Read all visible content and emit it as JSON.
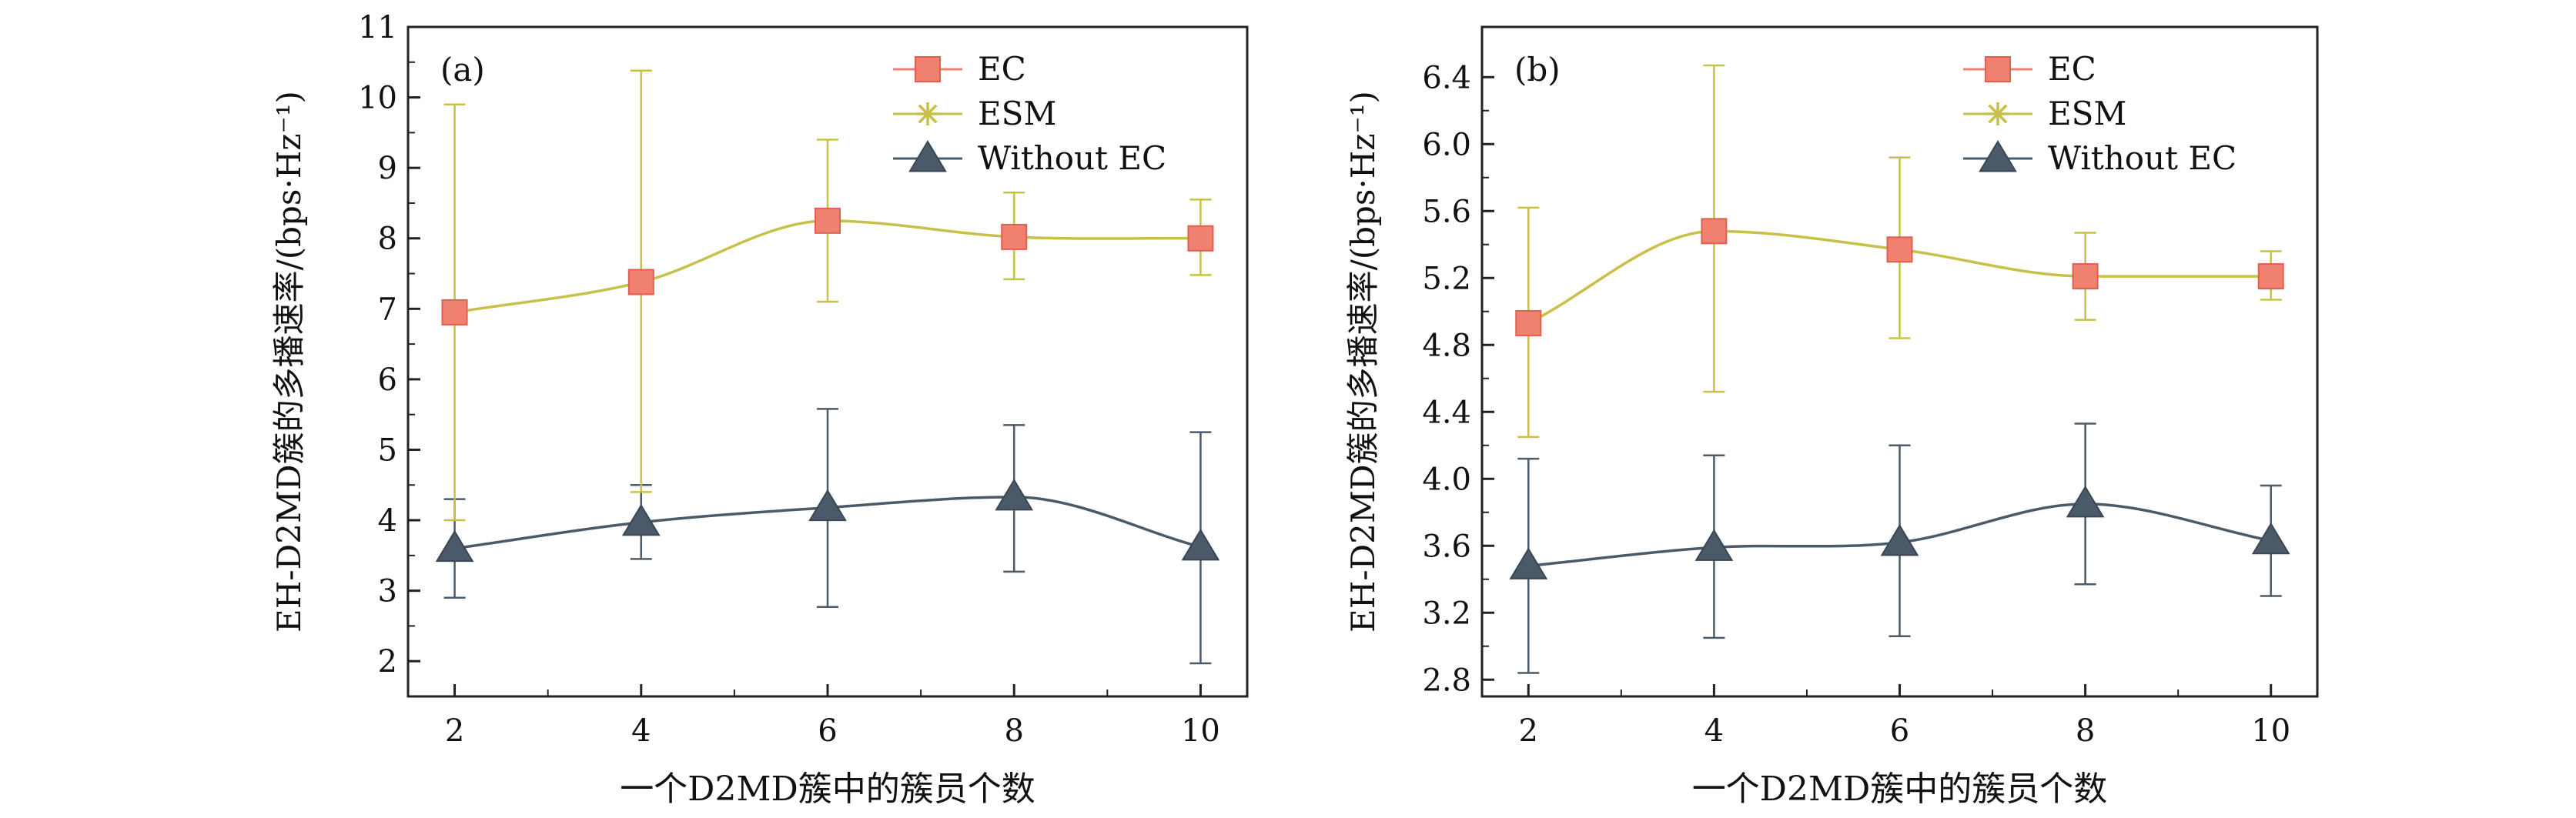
{
  "chart_data": [
    {
      "type": "line",
      "panel_label": "(a)",
      "xlabel": "一个D2MD簇中的簇员个数",
      "ylabel": "EH-D2MD簇的多播速率/(bps·Hz⁻¹)",
      "x": [
        2,
        4,
        6,
        8,
        10
      ],
      "xlim": [
        1.5,
        10.5
      ],
      "ylim": [
        1.5,
        11
      ],
      "xticks": [
        2,
        4,
        6,
        8,
        10
      ],
      "yticks": [
        2,
        3,
        4,
        5,
        6,
        7,
        8,
        9,
        10,
        11
      ],
      "ytick_decimals": 0,
      "legend_position": "top-right",
      "series": [
        {
          "name": "EC",
          "marker": "square",
          "color": "#f08070",
          "values": [
            6.95,
            7.38,
            8.25,
            8.02,
            8.0
          ],
          "err_low": [
            4.0,
            4.4,
            7.1,
            7.42,
            7.48
          ],
          "err_high": [
            9.9,
            10.38,
            9.4,
            8.65,
            8.55
          ]
        },
        {
          "name": "ESM",
          "marker": "star",
          "color": "#c8c048",
          "values": [
            6.95,
            7.38,
            8.25,
            8.02,
            8.0
          ],
          "err_low": [
            4.0,
            4.4,
            7.1,
            7.42,
            7.48
          ],
          "err_high": [
            9.9,
            10.38,
            9.4,
            8.65,
            8.55
          ]
        },
        {
          "name": "Without EC",
          "marker": "triangle",
          "color": "#4a5a68",
          "values": [
            3.6,
            3.97,
            4.18,
            4.33,
            3.62
          ],
          "err_low": [
            2.9,
            3.45,
            2.77,
            3.27,
            1.97
          ],
          "err_high": [
            4.3,
            4.5,
            5.58,
            5.35,
            5.25
          ]
        }
      ]
    },
    {
      "type": "line",
      "panel_label": "(b)",
      "xlabel": "一个D2MD簇中的簇员个数",
      "ylabel": "EH-D2MD簇的多播速率/(bps·Hz⁻¹)",
      "x": [
        2,
        4,
        6,
        8,
        10
      ],
      "xlim": [
        1.5,
        10.5
      ],
      "ylim": [
        2.7,
        6.7
      ],
      "xticks": [
        2,
        4,
        6,
        8,
        10
      ],
      "yticks": [
        2.8,
        3.2,
        3.6,
        4.0,
        4.4,
        4.8,
        5.2,
        5.6,
        6.0,
        6.4
      ],
      "ytick_decimals": 1,
      "legend_position": "top-right",
      "series": [
        {
          "name": "EC",
          "marker": "square",
          "color": "#f08070",
          "values": [
            4.93,
            5.48,
            5.37,
            5.21,
            5.21
          ],
          "err_low": [
            4.25,
            4.52,
            4.84,
            4.95,
            5.07
          ],
          "err_high": [
            5.62,
            6.47,
            5.92,
            5.47,
            5.36
          ]
        },
        {
          "name": "ESM",
          "marker": "star",
          "color": "#c8c048",
          "values": [
            4.93,
            5.48,
            5.37,
            5.21,
            5.21
          ],
          "err_low": [
            4.25,
            4.52,
            4.84,
            4.95,
            5.07
          ],
          "err_high": [
            5.62,
            6.47,
            5.92,
            5.47,
            5.36
          ]
        },
        {
          "name": "Without EC",
          "marker": "triangle",
          "color": "#4a5a68",
          "values": [
            3.48,
            3.59,
            3.62,
            3.85,
            3.63
          ],
          "err_low": [
            2.84,
            3.05,
            3.06,
            3.37,
            3.3
          ],
          "err_high": [
            4.12,
            4.14,
            4.2,
            4.33,
            3.96
          ]
        }
      ]
    }
  ]
}
